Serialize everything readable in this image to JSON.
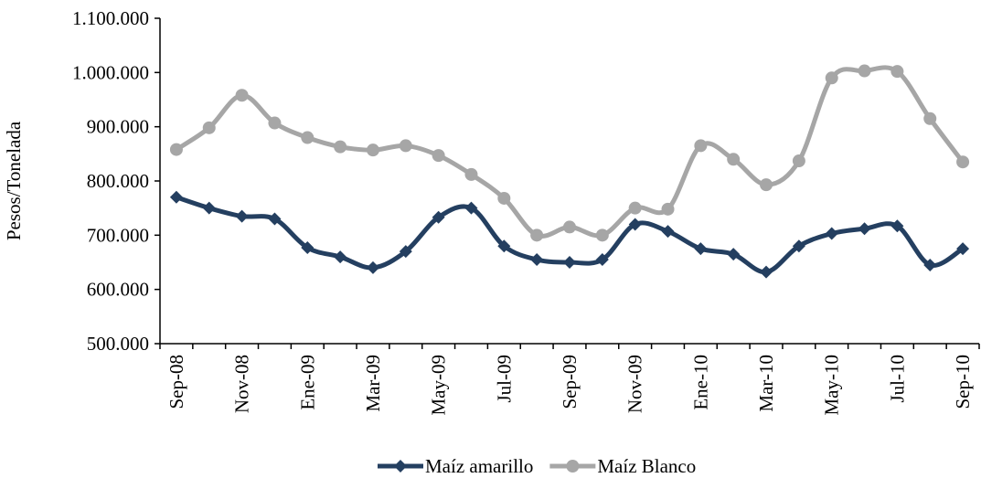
{
  "chart_data": {
    "type": "line",
    "y_label": "Pesos/Tonelada",
    "categories": [
      "Sep-08",
      null,
      "Nov-08",
      null,
      "Ene-09",
      null,
      "Mar-09",
      null,
      "May-09",
      null,
      "Jul-09",
      null,
      "Sep-09",
      null,
      "Nov-09",
      null,
      "Ene-10",
      null,
      "Mar-10",
      null,
      "May-10",
      null,
      "Jul-10",
      null,
      "Sep-10"
    ],
    "series": [
      {
        "name": "Maíz amarillo",
        "color": "#243f60",
        "marker": "diamond",
        "values": [
          770000,
          750000,
          735000,
          730000,
          677000,
          660000,
          640000,
          670000,
          733000,
          750000,
          680000,
          655000,
          650000,
          655000,
          720000,
          707000,
          675000,
          665000,
          632000,
          680000,
          703000,
          712000,
          717000,
          645000,
          675000
        ]
      },
      {
        "name": "Maíz Blanco",
        "color": "#a6a6a6",
        "marker": "circle",
        "values": [
          858000,
          898000,
          958000,
          907000,
          880000,
          863000,
          857000,
          865000,
          847000,
          812000,
          768000,
          700000,
          715000,
          700000,
          750000,
          748000,
          865000,
          840000,
          793000,
          837000,
          990000,
          1003000,
          1002000,
          915000,
          835000
        ]
      }
    ],
    "ylim": [
      500000,
      1100000
    ],
    "yticks": [
      {
        "value": 500000,
        "label": "500.000"
      },
      {
        "value": 600000,
        "label": "600.000"
      },
      {
        "value": 700000,
        "label": "700.000"
      },
      {
        "value": 800000,
        "label": "800.000"
      },
      {
        "value": 900000,
        "label": "900.000"
      },
      {
        "value": 1000000,
        "label": "1.000.000"
      },
      {
        "value": 1100000,
        "label": "1.100.000"
      }
    ],
    "grid": false,
    "legend": "bottom"
  }
}
